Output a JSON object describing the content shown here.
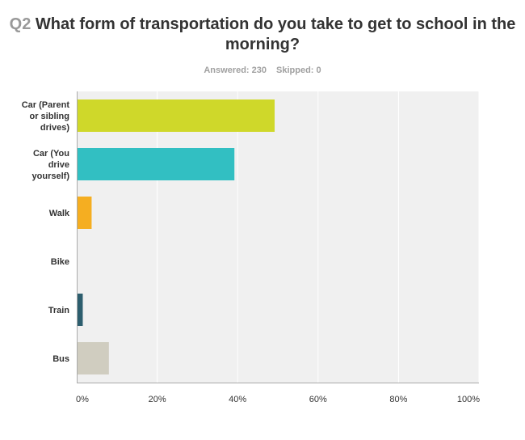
{
  "question": {
    "number": "Q2",
    "title_line1": "What form of transportation do you take to get to school in the",
    "title_line2": "morning?"
  },
  "stats": {
    "answered": "Answered: 230",
    "skipped": "Skipped: 0"
  },
  "chart_data": {
    "type": "bar",
    "orientation": "horizontal",
    "categories": [
      [
        "Car (Parent",
        "or sibling",
        "drives)"
      ],
      [
        "Car (You",
        "drive",
        "yourself)"
      ],
      [
        "Walk"
      ],
      [
        "Bike"
      ],
      [
        "Train"
      ],
      [
        "Bus"
      ]
    ],
    "values": [
      49,
      39,
      3.5,
      0,
      1.3,
      7.8
    ],
    "colors": [
      "#cfd82a",
      "#32bfc2",
      "#f5ae21",
      "#6c4e8e",
      "#2d5e6e",
      "#d0cdc0"
    ],
    "xlim": [
      0,
      100
    ],
    "xticks": [
      "0%",
      "20%",
      "40%",
      "60%",
      "80%",
      "100%"
    ],
    "grid": true,
    "plot_background": "#f0f0f0",
    "gridline_color": "#ffffff"
  }
}
